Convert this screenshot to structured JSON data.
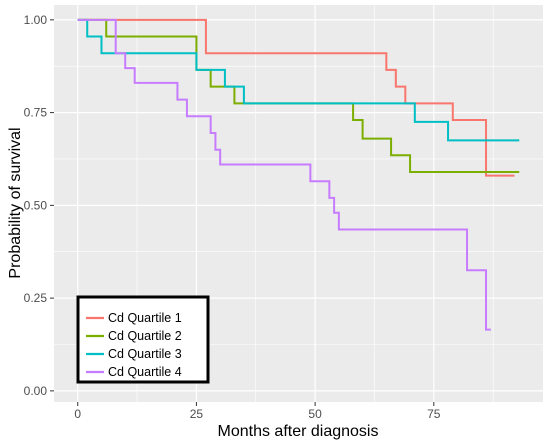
{
  "chart_data": {
    "type": "line",
    "step": true,
    "xlabel": "Months after diagnosis",
    "ylabel": "Probability of survival",
    "xlim": [
      -5,
      98
    ],
    "ylim": [
      -0.03,
      1.04
    ],
    "x_ticks": [
      0,
      25,
      50,
      75
    ],
    "y_ticks": [
      0.0,
      0.25,
      0.5,
      0.75,
      1.0
    ],
    "y_tick_labels": [
      "0.00",
      "0.25",
      "0.50",
      "0.75",
      "1.00"
    ],
    "grid": true,
    "legend_position": "bottom-left",
    "series": [
      {
        "name": "Cd Quartile 1",
        "color": "#F8766D",
        "x": [
          0,
          27,
          65,
          67,
          69,
          71,
          79,
          86,
          92
        ],
        "y": [
          1.0,
          0.91,
          0.865,
          0.82,
          0.775,
          0.775,
          0.73,
          0.58,
          0.58
        ]
      },
      {
        "name": "Cd Quartile 2",
        "color": "#7CAE00",
        "x": [
          0,
          6,
          20,
          25,
          28,
          33,
          58,
          60,
          66,
          70,
          93
        ],
        "y": [
          1.0,
          0.955,
          0.955,
          0.865,
          0.82,
          0.775,
          0.73,
          0.68,
          0.635,
          0.59,
          0.59
        ]
      },
      {
        "name": "Cd Quartile 3",
        "color": "#00BFC4",
        "x": [
          0,
          2,
          5,
          25,
          31,
          35,
          71,
          78,
          93
        ],
        "y": [
          1.0,
          0.955,
          0.91,
          0.865,
          0.82,
          0.775,
          0.725,
          0.675,
          0.675
        ]
      },
      {
        "name": "Cd Quartile 4",
        "color": "#C77CFF",
        "x": [
          0,
          8,
          10,
          12,
          21,
          23,
          28,
          29,
          30,
          31,
          49,
          53,
          54,
          55,
          82,
          86,
          87
        ],
        "y": [
          1.0,
          0.91,
          0.87,
          0.83,
          0.785,
          0.74,
          0.695,
          0.65,
          0.61,
          0.61,
          0.565,
          0.52,
          0.48,
          0.435,
          0.325,
          0.165,
          0.165
        ]
      }
    ]
  }
}
